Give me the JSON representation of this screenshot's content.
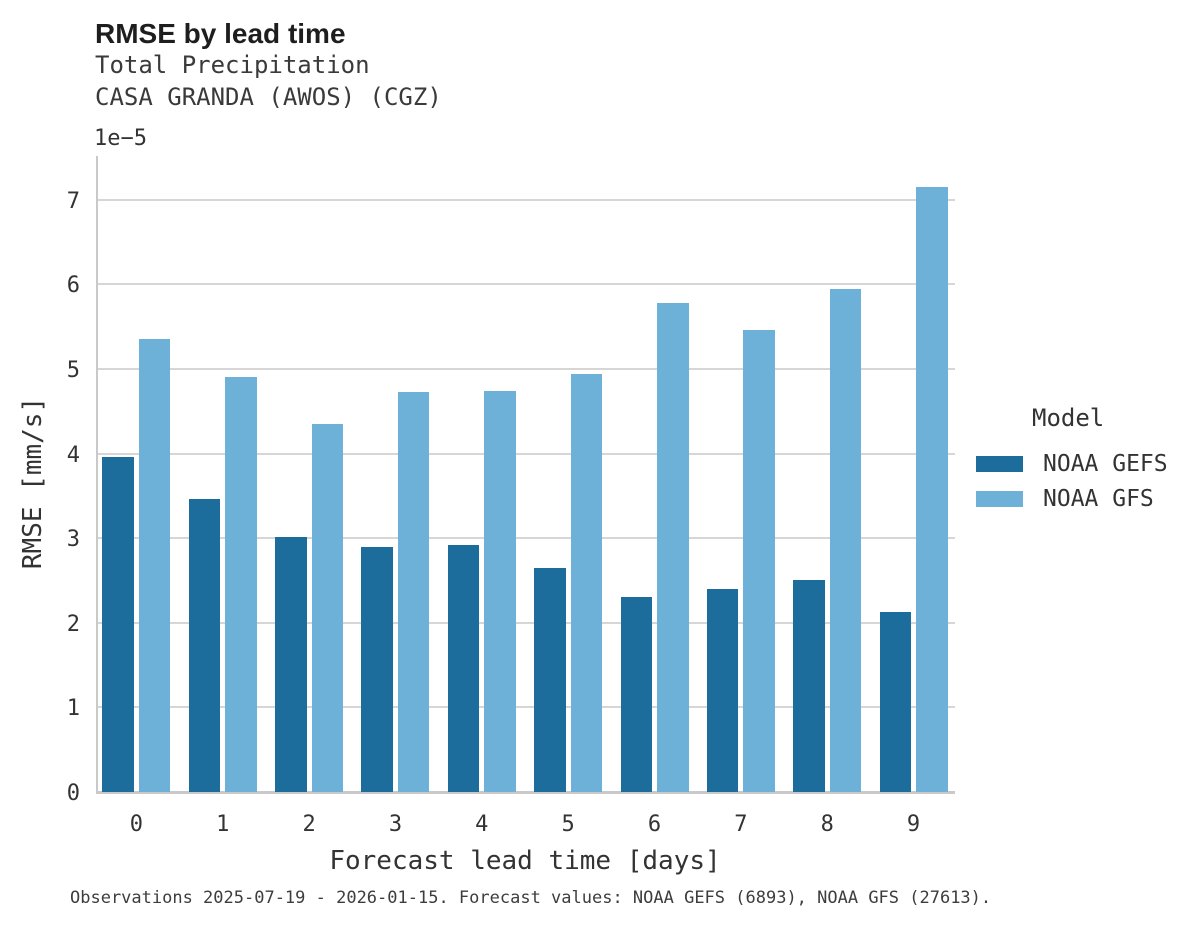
{
  "header": {
    "title": "RMSE by lead time",
    "subtitle1": "Total Precipitation",
    "subtitle2": "CASA GRANDA (AWOS) (CGZ)"
  },
  "caption": "Observations 2025-07-19 - 2026-01-15. Forecast values: NOAA GEFS (6893), NOAA GFS (27613).",
  "chart_data": {
    "type": "bar",
    "title": "RMSE by lead time",
    "subtitle": [
      "Total Precipitation",
      "CASA GRANDA (AWOS) (CGZ)"
    ],
    "xlabel": "Forecast lead time [days]",
    "ylabel": "RMSE [mm/s]",
    "y_offset_label": "1e−5",
    "y_units_multiplier": "1e-5",
    "categories": [
      "0",
      "1",
      "2",
      "3",
      "4",
      "5",
      "6",
      "7",
      "8",
      "9"
    ],
    "series": [
      {
        "name": "NOAA GEFS",
        "color": "#1c6d9c",
        "values": [
          3.95,
          3.46,
          3.01,
          2.89,
          2.91,
          2.64,
          2.3,
          2.39,
          2.5,
          2.12
        ]
      },
      {
        "name": "NOAA GFS",
        "color": "#6db1d9",
        "values": [
          5.35,
          4.9,
          4.35,
          4.72,
          4.73,
          4.93,
          5.78,
          5.45,
          5.94,
          7.15
        ]
      }
    ],
    "ylim": [
      0,
      7.5
    ],
    "yticks": [
      0,
      1,
      2,
      3,
      4,
      5,
      6,
      7
    ],
    "grid": "horizontal",
    "legend_title": "Model",
    "legend_position": "right",
    "colors": {
      "grid": "#d6d6d6",
      "spine": "#c9c9c9",
      "text": "#333333"
    }
  }
}
